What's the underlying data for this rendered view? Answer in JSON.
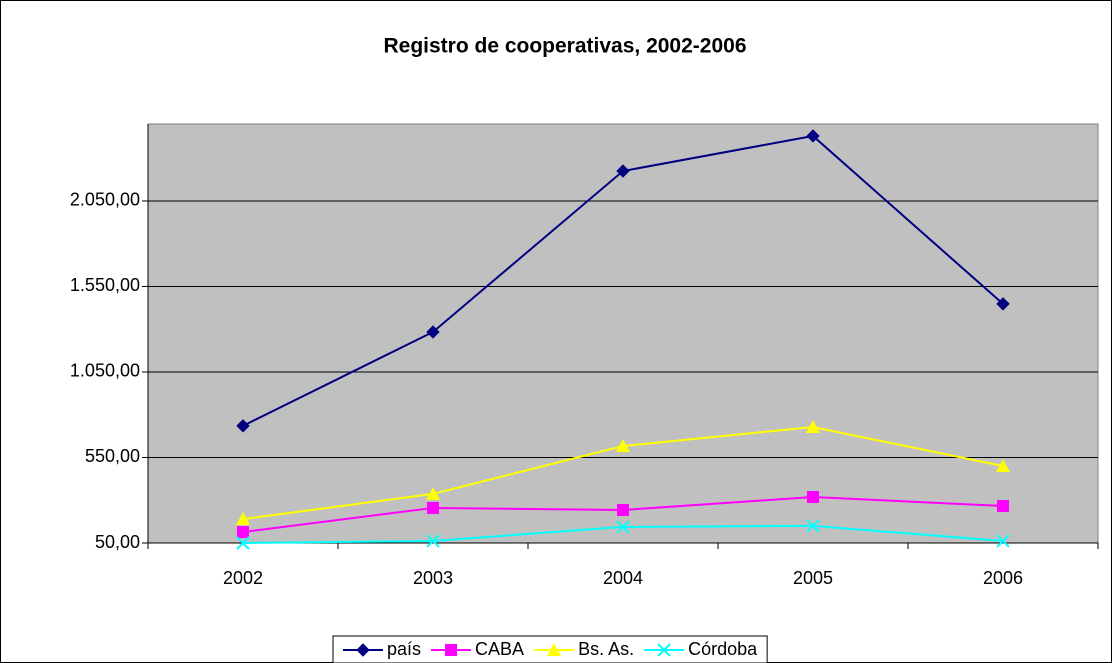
{
  "chart_data": {
    "type": "line",
    "title": "Registro de cooperativas, 2002-2006",
    "categories": [
      "2002",
      "2003",
      "2004",
      "2005",
      "2006"
    ],
    "series": [
      {
        "name": "país",
        "color": "#000080",
        "marker": "diamond",
        "values": [
          735,
          1284,
          2225,
          2430,
          1448
        ]
      },
      {
        "name": "CABA",
        "color": "#ff00ff",
        "marker": "square",
        "values": [
          114,
          255,
          243,
          319,
          266
        ]
      },
      {
        "name": "Bs. As.",
        "color": "#ffff00",
        "marker": "triangle",
        "values": [
          190,
          337,
          617,
          728,
          500
        ]
      },
      {
        "name": "Córdoba",
        "color": "#00ffff",
        "marker": "x",
        "values": [
          50,
          62,
          144,
          150,
          62
        ]
      }
    ],
    "ylim": [
      50,
      2500
    ],
    "yticks": [
      {
        "value": 50,
        "label": "50,00"
      },
      {
        "value": 550,
        "label": "550,00"
      },
      {
        "value": 1050,
        "label": "1.050,00"
      },
      {
        "value": 1550,
        "label": "1.550,00"
      },
      {
        "value": 2050,
        "label": "2.050,00"
      }
    ],
    "grid": true,
    "legend": "bottom"
  }
}
